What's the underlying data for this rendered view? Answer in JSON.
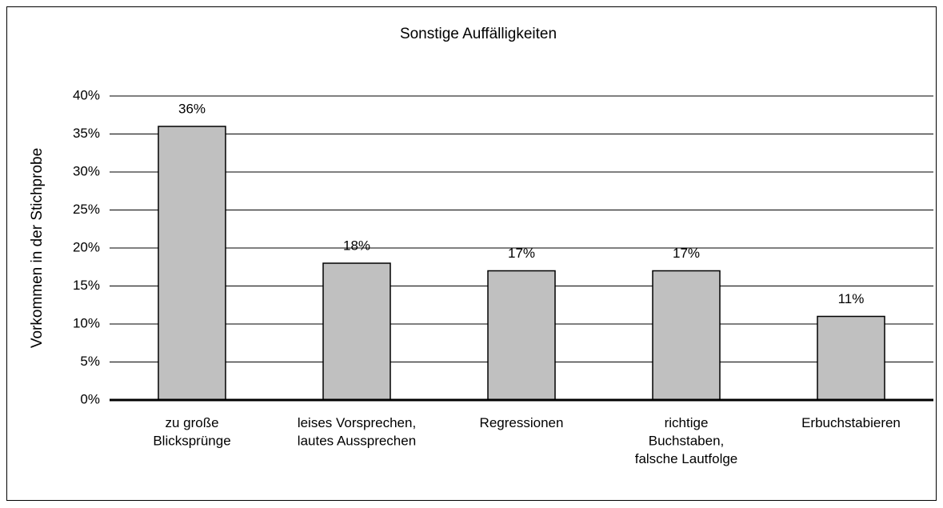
{
  "chart_data": {
    "type": "bar",
    "title": "Sonstige Auffälligkeiten",
    "y_axis_label": "Vorkommen in der Stichprobe",
    "categories": [
      "zu große\nBlicksprünge",
      "leises Vorsprechen,\nlautes Aussprechen",
      "Regressionen",
      "richtige\nBuchstaben,\nfalsche Lautfolge",
      "Erbuchstabieren"
    ],
    "values": [
      36,
      18,
      17,
      17,
      11
    ],
    "value_labels": [
      "36%",
      "18%",
      "17%",
      "17%",
      "11%"
    ],
    "color": "#c0c0c0",
    "ylim": [
      0,
      40
    ],
    "yticks": [
      {
        "value": 0,
        "label": "0%"
      },
      {
        "value": 5,
        "label": "5%"
      },
      {
        "value": 10,
        "label": "10%"
      },
      {
        "value": 15,
        "label": "15%"
      },
      {
        "value": 20,
        "label": "20%"
      },
      {
        "value": 25,
        "label": "25%"
      },
      {
        "value": 30,
        "label": "30%"
      },
      {
        "value": 35,
        "label": "35%"
      },
      {
        "value": 40,
        "label": "40%"
      }
    ],
    "grid": true
  }
}
